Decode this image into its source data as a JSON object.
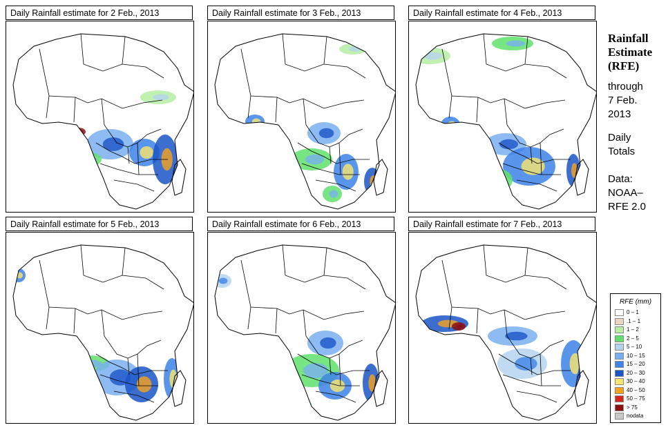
{
  "panels": [
    {
      "title": "Daily Rainfall estimate for  2 Feb., 2013"
    },
    {
      "title": "Daily Rainfall estimate for  3 Feb., 2013"
    },
    {
      "title": "Daily Rainfall estimate for  4 Feb., 2013"
    },
    {
      "title": "Daily Rainfall estimate for  5 Feb., 2013"
    },
    {
      "title": "Daily Rainfall estimate for  6 Feb., 2013"
    },
    {
      "title": "Daily Rainfall estimate for  7 Feb., 2013"
    }
  ],
  "sidebar": {
    "title_line1": "Rainfall",
    "title_line2": "Estimate",
    "title_line3": "(RFE)",
    "through_line1": "through",
    "through_line2": "7 Feb.",
    "through_line3": "2013",
    "totals_line1": "Daily",
    "totals_line2": "Totals",
    "data_line1": "Data:",
    "data_line2": "NOAA–",
    "data_line3": "RFE 2.0"
  },
  "legend": {
    "title": "RFE (mm)",
    "items": [
      {
        "label": "0 – 1",
        "color": "#ffffff"
      },
      {
        "label": ".1 – 1",
        "color": "#e9d7c0"
      },
      {
        "label": "1 – 2",
        "color": "#b5efa6"
      },
      {
        "label": "2 – 5",
        "color": "#5fe06c"
      },
      {
        "label": "5 – 10",
        "color": "#b4d3ef"
      },
      {
        "label": "10 – 15",
        "color": "#79aff0"
      },
      {
        "label": "15 – 20",
        "color": "#3d83e9"
      },
      {
        "label": "20 – 30",
        "color": "#1a55c8"
      },
      {
        "label": "30 – 40",
        "color": "#fbe56d"
      },
      {
        "label": "40 – 50",
        "color": "#f8a21c"
      },
      {
        "label": "50 – 75",
        "color": "#d9261c"
      },
      {
        "label": "> 75",
        "color": "#8c0f0f"
      },
      {
        "label": "nodata",
        "color": "#c8c8c8"
      }
    ]
  }
}
